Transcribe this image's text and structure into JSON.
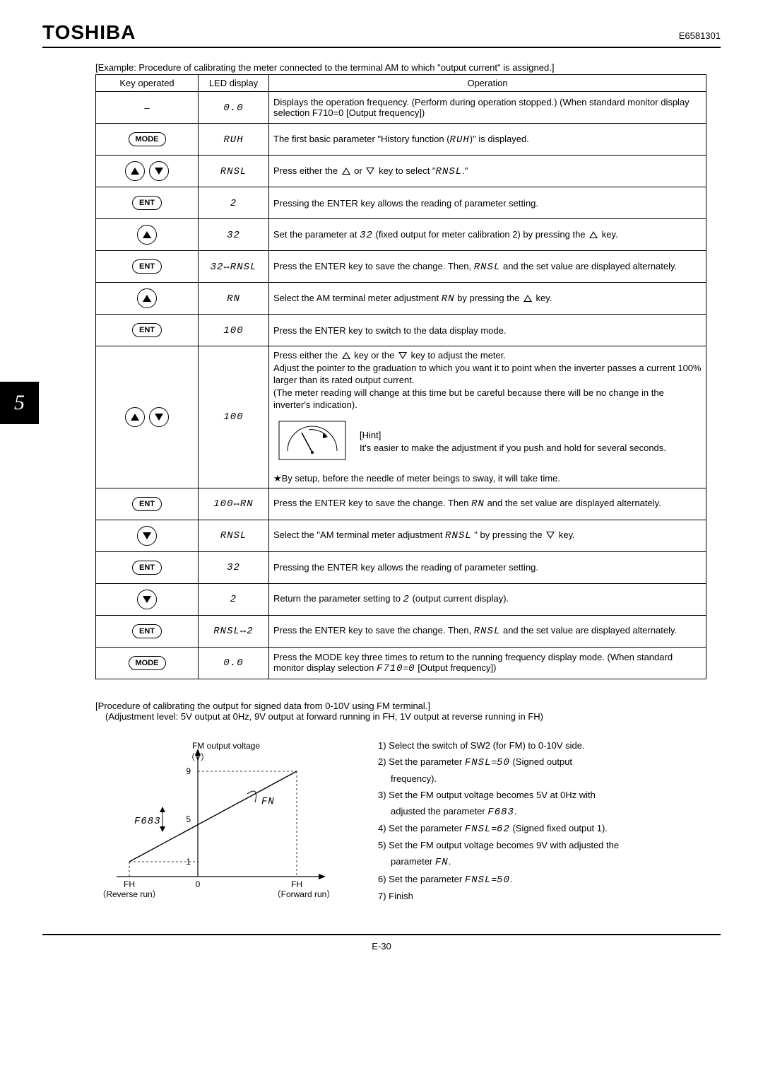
{
  "header": {
    "brand": "TOSHIBA",
    "doc_code": "E6581301"
  },
  "chapter": "5",
  "caption": "[Example: Procedure of calibrating the meter connected to the terminal AM to which \"output current\" is assigned.]",
  "table": {
    "headers": {
      "key": "Key operated",
      "led": "LED display",
      "op": "Operation"
    },
    "rows": [
      {
        "key_type": "dash",
        "led": "0.0",
        "op": "Displays the operation frequency. (Perform during operation stopped.) (When standard monitor display selection F710=0 [Output frequency])"
      },
      {
        "key_type": "mode",
        "led": "RUH",
        "op_html": "The first basic parameter \"History function (<span class='seg'>RUH</span>)\" is displayed."
      },
      {
        "key_type": "updown",
        "led": "RNSL",
        "op_html": "Press either the <span class='tri-up-out'></span> or <span class='tri-down-out'></span> key to select \"<span class='seg'>RNSL</span>.\""
      },
      {
        "key_type": "ent",
        "led": "2",
        "op": "Pressing the ENTER key allows the reading of parameter setting."
      },
      {
        "key_type": "up",
        "led": "32",
        "op_html": "Set the parameter at <span class='seg'>32</span> (fixed output for meter calibration 2) by pressing the <span class='tri-up-out'></span> key."
      },
      {
        "key_type": "ent",
        "led": "32⇔RNSL",
        "op_html": "Press the ENTER key to save the change. Then, <span class='seg'>RNSL</span> and the set value are displayed alternately."
      },
      {
        "key_type": "up",
        "led": "RN",
        "op_html": "Select the AM terminal meter adjustment <span class='seg'>RN</span> by pressing the <span class='tri-up-out'></span> key."
      },
      {
        "key_type": "ent",
        "led": "100",
        "op": "Press the ENTER key to switch to the data display mode."
      },
      {
        "key_type": "updown",
        "led": "100",
        "op_special": "bigcell"
      },
      {
        "key_type": "ent",
        "led": "100⇔RN",
        "op_html": "Press the ENTER key to save the change. Then <span class='seg'>RN</span> and the set value are displayed alternately."
      },
      {
        "key_type": "down",
        "led": "RNSL",
        "op_html": "Select the \"AM terminal meter adjustment <span class='seg'>RNSL</span> \" by pressing the <span class='tri-down-out'></span> key."
      },
      {
        "key_type": "ent",
        "led": "32",
        "op": "Pressing the ENTER key allows the reading of parameter setting."
      },
      {
        "key_type": "down",
        "led": "2",
        "op_html": "Return the parameter setting to <span class='seg'>2</span> (output current display)."
      },
      {
        "key_type": "ent",
        "led": "RNSL⇔2",
        "op_html": "Press the ENTER key to save the change. Then, <span class='seg'>RNSL</span> and the set value are displayed alternately."
      },
      {
        "key_type": "mode",
        "led": "0.0",
        "op_html": "Press the MODE key three times to return to the running frequency display mode. (When standard monitor display selection <span class='seg'>F710</span>=<span class='seg'>0</span> [Output frequency])"
      }
    ]
  },
  "bigcell": {
    "line1_html": "Press either the <span class='tri-up-out'></span> key or the <span class='tri-down-out'></span> key to adjust the meter.",
    "line2": "Adjust the pointer to the graduation to which you want it to point when the inverter passes a current 100% larger than its rated output current.",
    "line3": "(The meter reading will change at this time but be careful because there will be no change in the inverter's indication).",
    "hint_label": "[Hint]",
    "hint_text": "It's easier to make the adjustment if you push and hold for several seconds.",
    "star_note": "★By setup, before the needle of meter beings to sway, it will take time."
  },
  "procedure": {
    "title": "[Procedure of calibrating the output for signed data from 0-10V using FM terminal.]",
    "sub": "(Adjustment level: 5V output at 0Hz, 9V output at forward running in FH, 1V output at reverse running in FH)"
  },
  "graph": {
    "title": "FM output voltage",
    "y_unit": "（V）",
    "y_ticks": [
      9,
      5,
      1
    ],
    "x_left": "FH",
    "x_left_sub": "（Reverse run）",
    "x_zero": "0",
    "x_right": "FH",
    "x_right_sub": "（Forward run）",
    "f683_label": "F683",
    "fn_label": "FN",
    "line_color": "#000000",
    "arrow_color": "#000000",
    "grid_color": "#000000"
  },
  "steps": {
    "s1": "1) Select the switch of SW2 (for FM) to 0-10V side.",
    "s2_html": "2) Set the parameter <span class='seg'>FNSL</span>=<span class='seg'>50</span> (Signed output",
    "s2b": "frequency).",
    "s3": "3) Set the FM output voltage becomes 5V at 0Hz with",
    "s3b_html": "adjusted the parameter <span class='seg'>F683</span>.",
    "s4_html": "4) Set the parameter <span class='seg'>FNSL</span>=<span class='seg'>62</span> (Signed fixed output 1).",
    "s5": "5) Set the FM output voltage becomes 9V with adjusted the",
    "s5b_html": "parameter <span class='seg'>FN</span>.",
    "s6_html": "6) Set the parameter <span class='seg'>FNSL</span>=<span class='seg'>50</span>.",
    "s7": "7) Finish"
  },
  "page_num": "E-30"
}
